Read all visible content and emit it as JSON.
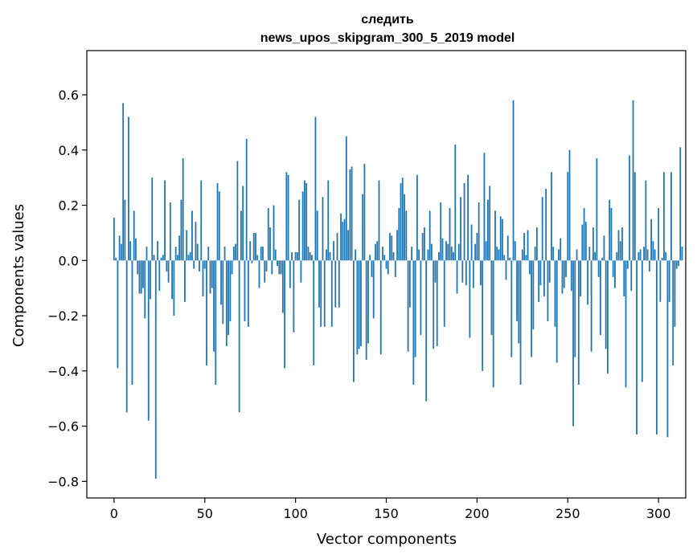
{
  "chart_data": {
    "type": "bar",
    "title_line1": "следить",
    "title_line2": "news_upos_skipgram_300_5_2019 model",
    "xlabel": "Vector components",
    "ylabel": "Components values",
    "xlim": [
      -15,
      315
    ],
    "ylim": [
      -0.86,
      0.76
    ],
    "xticks": [
      0,
      50,
      100,
      150,
      200,
      250,
      300
    ],
    "yticks": [
      -0.8,
      -0.6,
      -0.4,
      -0.2,
      0.0,
      0.2,
      0.4,
      0.6
    ],
    "ytick_labels": [
      "−0.8",
      "−0.6",
      "−0.4",
      "−0.2",
      "0.0",
      "0.2",
      "0.4",
      "0.6"
    ],
    "bar_color": "#1f77b4",
    "grid": false,
    "legend": "none",
    "x_start": 0,
    "values": [
      0.155,
      0.01,
      -0.39,
      0.09,
      0.06,
      0.57,
      0.22,
      -0.55,
      0.52,
      0.07,
      -0.45,
      0.18,
      0.08,
      -0.05,
      -0.12,
      -0.12,
      -0.1,
      -0.21,
      0.05,
      -0.58,
      -0.14,
      0.3,
      0.02,
      -0.79,
      0.07,
      -0.11,
      0.01,
      0.02,
      0.29,
      -0.04,
      -0.08,
      0.21,
      -0.14,
      -0.2,
      0.05,
      0.02,
      0.09,
      0.22,
      0.37,
      -0.15,
      0.11,
      0.02,
      0.03,
      0.18,
      -0.03,
      0.14,
      0.06,
      -0.04,
      0.29,
      -0.13,
      -0.03,
      -0.38,
      0.05,
      -0.12,
      -0.1,
      -0.33,
      -0.45,
      0.28,
      0.25,
      -0.16,
      -0.23,
      0.05,
      -0.31,
      -0.27,
      -0.22,
      -0.05,
      0.05,
      0.06,
      0.36,
      -0.55,
      0.18,
      0.27,
      -0.22,
      0.44,
      -0.24,
      0.07,
      -0.01,
      0.1,
      0.1,
      0.02,
      -0.1,
      0.05,
      0.05,
      -0.08,
      -0.04,
      0.19,
      0.12,
      -0.05,
      0.2,
      0.04,
      -0.02,
      -0.05,
      -0.05,
      -0.19,
      -0.39,
      0.32,
      0.31,
      -0.1,
      0.03,
      -0.26,
      0.03,
      0.03,
      0.22,
      -0.08,
      0.25,
      0.29,
      0.28,
      0.05,
      0.03,
      0.02,
      -0.38,
      0.52,
      0.18,
      -0.17,
      -0.24,
      0.23,
      -0.24,
      0.04,
      0.29,
      0.03,
      -0.24,
      0.07,
      -0.17,
      0.1,
      -0.17,
      0.17,
      0.14,
      0.15,
      0.45,
      0.11,
      0.33,
      0.34,
      -0.44,
      0.04,
      -0.34,
      -0.32,
      -0.31,
      0.24,
      0.35,
      -0.36,
      -0.3,
      0.02,
      -0.06,
      -0.21,
      0.06,
      0.07,
      0.29,
      -0.34,
      0.05,
      0.02,
      -0.03,
      -0.05,
      0.1,
      0.09,
      0.03,
      -0.06,
      0.11,
      0.19,
      0.28,
      0.3,
      0.24,
      0.18,
      -0.33,
      -0.17,
      0.05,
      -0.45,
      -0.35,
      0.31,
      0.04,
      -0.27,
      0.1,
      0.12,
      -0.51,
      0.04,
      0.18,
      0.06,
      -0.32,
      -0.08,
      -0.31,
      0.03,
      0.21,
      0.08,
      -0.24,
      0.07,
      0.06,
      0.19,
      0.05,
      0.03,
      0.42,
      -0.12,
      0.06,
      0.23,
      -0.08,
      0.28,
      -0.09,
      0.31,
      -0.28,
      0.13,
      -0.1,
      0.06,
      0.1,
      0.21,
      -0.09,
      -0.4,
      0.39,
      0.07,
      0.22,
      0.27,
      -0.27,
      -0.46,
      0.18,
      0.05,
      0.04,
      0.16,
      0.15,
      0.02,
      -0.07,
      0.09,
      0.01,
      -0.35,
      0.58,
      0.07,
      -0.22,
      -0.3,
      -0.45,
      0.04,
      0.1,
      0.02,
      0.11,
      -0.05,
      -0.35,
      -0.25,
      0.05,
      0.12,
      -0.15,
      -0.09,
      0.23,
      -0.13,
      0.26,
      -0.22,
      -0.08,
      0.32,
      0.05,
      -0.24,
      -0.37,
      0.04,
      0.08,
      -0.12,
      -0.1,
      -0.06,
      0.32,
      0.4,
      -0.11,
      -0.6,
      -0.35,
      0.04,
      -0.45,
      -0.13,
      0.13,
      0.19,
      0.14,
      -0.16,
      0.05,
      -0.33,
      0.12,
      0.03,
      0.37,
      -0.06,
      -0.27,
      0.01,
      0.09,
      -0.32,
      -0.41,
      0.22,
      0.19,
      -0.06,
      -0.1,
      0.03,
      0.11,
      0.07,
      0.12,
      -0.13,
      -0.46,
      -0.03,
      0.38,
      -0.11,
      0.58,
      0.32,
      -0.63,
      0.03,
      0.04,
      -0.44,
      0.05,
      0.29,
      0.04,
      -0.04,
      0.15,
      0.07,
      0.04,
      -0.63,
      0.19,
      -0.15,
      0.01,
      0.32,
      0.03,
      -0.64,
      -0.15,
      0.32,
      -0.38,
      -0.24,
      -0.03,
      -0.02,
      0.41,
      0.05
    ]
  }
}
